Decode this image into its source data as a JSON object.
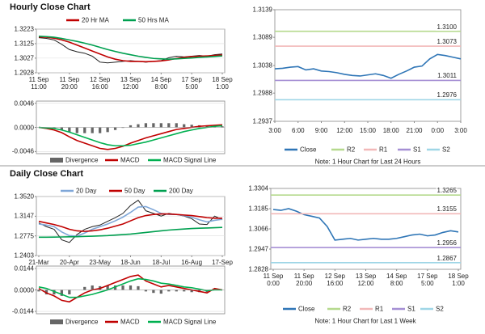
{
  "headers": [
    "Hourly Close Chart",
    "Daily Close Chart"
  ],
  "chart_data": [
    {
      "type": "line",
      "grid": true,
      "categories": [
        "11 Sep\n11:00",
        null,
        null,
        null,
        "11 Sep\n20:00",
        null,
        null,
        null,
        "12 Sep\n16:00",
        null,
        null,
        null,
        "13 Sep\n12:00",
        null,
        null,
        null,
        "14 Sep\n8:00",
        null,
        null,
        null,
        "17 Sep\n5:00",
        null,
        null,
        null,
        "18 Sep\n1:00"
      ],
      "ylim": [
        1.2928,
        1.3223
      ],
      "yticks": [
        1.3223,
        1.3125,
        1.3027,
        1.2928
      ],
      "series": [
        {
          "color": "#222222",
          "values": [
            1.3165,
            1.316,
            1.315,
            1.312,
            1.3085,
            1.307,
            1.306,
            1.304,
            1.3,
            1.2995,
            1.3,
            1.3005,
            1.301,
            1.3005,
            1.3,
            1.3005,
            1.301,
            1.303,
            1.304,
            1.3035,
            1.304,
            1.3045,
            1.304,
            1.305,
            1.3055
          ]
        },
        {
          "name": "20 Hr MA",
          "color": "#c00000",
          "values": [
            1.317,
            1.3168,
            1.3162,
            1.315,
            1.3135,
            1.3115,
            1.3095,
            1.3075,
            1.3055,
            1.3035,
            1.302,
            1.301,
            1.3005,
            1.3005,
            1.3003,
            1.3005,
            1.3008,
            1.3015,
            1.3025,
            1.3032,
            1.3037,
            1.304,
            1.3042,
            1.3045,
            1.3048
          ]
        },
        {
          "name": "50 Hrs MA",
          "color": "#00a050",
          "values": [
            1.3175,
            1.3172,
            1.3168,
            1.316,
            1.315,
            1.314,
            1.3128,
            1.3115,
            1.31,
            1.3085,
            1.3072,
            1.306,
            1.305,
            1.304,
            1.3032,
            1.3025,
            1.3022,
            1.302,
            1.3022,
            1.3025,
            1.3028,
            1.3032,
            1.3035,
            1.3038,
            1.3042
          ]
        }
      ]
    },
    {
      "type": "combo",
      "grid": true,
      "ylim": [
        -0.005,
        0.005
      ],
      "yticks": [
        0.0046,
        {
          "value": 0,
          "label": "0.0000"
        },
        -0.0046
      ],
      "series": [
        {
          "name": "Divergence",
          "type": "bar",
          "color": "#666666",
          "values": [
            0,
            -0.0001,
            -0.0003,
            -0.0005,
            -0.0009,
            -0.0011,
            -0.0011,
            -0.0011,
            -0.0011,
            -0.0009,
            -0.0005,
            -0.0001,
            0.0004,
            0.0006,
            0.0008,
            0.0008,
            0.0008,
            0.0008,
            0.0008,
            0.0006,
            0.0005,
            0.0004,
            0.0003,
            0.0002,
            0.0002
          ]
        },
        {
          "name": "MACD",
          "type": "line",
          "color": "#c00000",
          "values": [
            0,
            -0.0002,
            -0.0005,
            -0.001,
            -0.0018,
            -0.0025,
            -0.003,
            -0.0035,
            -0.004,
            -0.0042,
            -0.004,
            -0.0036,
            -0.003,
            -0.0025,
            -0.002,
            -0.0016,
            -0.0012,
            -0.0008,
            -0.0004,
            -0.0002,
            0,
            0.0002,
            0.0003,
            0.0004,
            0.0005
          ]
        },
        {
          "name": "MACD Signal Line",
          "type": "line",
          "color": "#00b050",
          "values": [
            0,
            -0.0001,
            -0.0002,
            -0.0005,
            -0.0009,
            -0.0014,
            -0.0019,
            -0.0024,
            -0.0029,
            -0.0033,
            -0.0035,
            -0.0035,
            -0.0034,
            -0.0031,
            -0.0028,
            -0.0024,
            -0.002,
            -0.0016,
            -0.0012,
            -0.0008,
            -0.0005,
            -0.0002,
            0,
            0.0002,
            0.0003
          ]
        }
      ]
    },
    {
      "type": "line",
      "grid": false,
      "categories": [
        "3:00",
        null,
        null,
        "6:00",
        null,
        null,
        "9:00",
        null,
        null,
        "12:00",
        null,
        null,
        "15:00",
        null,
        null,
        "18:00",
        null,
        null,
        "21:00",
        null,
        null,
        "0:00",
        null,
        null,
        "3:00"
      ],
      "ylim": [
        1.2937,
        1.3139
      ],
      "yticks": [
        1.3139,
        1.3089,
        1.3038,
        1.2988,
        1.2937
      ],
      "note": "Note: 1 Hour Chart for Last 24 Hours",
      "series": [
        {
          "name": "Close",
          "color": "#2e75b6",
          "values": [
            1.3032,
            1.3033,
            1.3035,
            1.3036,
            1.303,
            1.3032,
            1.3028,
            1.3027,
            1.3025,
            1.3022,
            1.302,
            1.3019,
            1.3021,
            1.3023,
            1.302,
            1.3015,
            1.3022,
            1.3028,
            1.3035,
            1.3037,
            1.305,
            1.3058,
            1.3056,
            1.3053,
            1.305
          ]
        },
        {
          "name": "R2",
          "color": "#b5d98d",
          "level": 1.31,
          "level_label": "1.3100"
        },
        {
          "name": "R1",
          "color": "#f2b8b8",
          "level": 1.3073,
          "level_label": "1.3073"
        },
        {
          "name": "S1",
          "color": "#a58fd4",
          "level": 1.3011,
          "level_label": "1.3011"
        },
        {
          "name": "S2",
          "color": "#9fd6e6",
          "level": 1.2976,
          "level_label": "1.2976"
        }
      ]
    },
    {
      "type": "line",
      "grid": true,
      "categories": [
        "21-Mar",
        null,
        null,
        null,
        "20-Apr",
        null,
        null,
        null,
        "23-May",
        null,
        null,
        null,
        "18-Jun",
        null,
        null,
        null,
        "18-Jul",
        null,
        null,
        null,
        "16-Aug",
        null,
        null,
        null,
        "17-Sep"
      ],
      "ylim": [
        1.2403,
        1.352
      ],
      "yticks": [
        {
          "value": 1.352,
          "label": "1.3520"
        },
        1.3147,
        1.2775,
        1.2403
      ],
      "series": [
        {
          "color": "#222222",
          "values": [
            1.302,
            1.295,
            1.29,
            1.27,
            1.265,
            1.28,
            1.29,
            1.295,
            1.298,
            1.305,
            1.312,
            1.32,
            1.335,
            1.345,
            1.325,
            1.32,
            1.315,
            1.32,
            1.318,
            1.315,
            1.31,
            1.3,
            1.299,
            1.315,
            1.308
          ]
        },
        {
          "name": "20 Day",
          "color": "#7fa7d8",
          "values": [
            1.3,
            1.298,
            1.295,
            1.285,
            1.278,
            1.277,
            1.283,
            1.29,
            1.295,
            1.3,
            1.306,
            1.313,
            1.322,
            1.332,
            1.333,
            1.327,
            1.32,
            1.318,
            1.318,
            1.316,
            1.313,
            1.308,
            1.304,
            1.307,
            1.309
          ]
        },
        {
          "name": "50 Day",
          "color": "#c00000",
          "values": [
            1.305,
            1.302,
            1.299,
            1.295,
            1.29,
            1.287,
            1.286,
            1.287,
            1.289,
            1.292,
            1.296,
            1.3,
            1.306,
            1.312,
            1.316,
            1.318,
            1.319,
            1.319,
            1.318,
            1.317,
            1.316,
            1.314,
            1.312,
            1.311,
            1.311
          ]
        },
        {
          "name": "200 Day",
          "color": "#00a050",
          "values": [
            1.275,
            1.275,
            1.2752,
            1.2755,
            1.2757,
            1.276,
            1.2765,
            1.277,
            1.2775,
            1.278,
            1.279,
            1.28,
            1.281,
            1.2825,
            1.284,
            1.2855,
            1.287,
            1.2885,
            1.2895,
            1.2905,
            1.2915,
            1.292,
            1.2925,
            1.293,
            1.2935
          ]
        }
      ]
    },
    {
      "type": "combo",
      "grid": true,
      "ylim": [
        -0.016,
        0.016
      ],
      "yticks": [
        0.0144,
        {
          "value": 0,
          "label": "0.0000"
        },
        -0.0144
      ],
      "series": [
        {
          "name": "Divergence",
          "type": "bar",
          "color": "#666666",
          "values": [
            -0.001,
            -0.003,
            -0.003,
            -0.004,
            -0.003,
            0,
            0.002,
            0.003,
            0.0025,
            0.003,
            0.003,
            0.003,
            0.003,
            0.0025,
            -0.001,
            -0.002,
            -0.0025,
            -0.001,
            -0.001,
            -0.001,
            -0.0015,
            -0.0015,
            -0.0015,
            0.001,
            0
          ]
        },
        {
          "name": "MACD",
          "type": "line",
          "color": "#c00000",
          "values": [
            0.001,
            -0.002,
            -0.004,
            -0.007,
            -0.008,
            -0.005,
            -0.002,
            0,
            0.001,
            0.003,
            0.005,
            0.007,
            0.009,
            0.01,
            0.006,
            0.004,
            0.002,
            0.003,
            0.002,
            0.001,
            0,
            -0.001,
            -0.002,
            0.001,
            0
          ]
        },
        {
          "name": "MACD Signal Line",
          "type": "line",
          "color": "#00b050",
          "values": [
            0.002,
            0.001,
            -0.001,
            -0.003,
            -0.005,
            -0.005,
            -0.004,
            -0.003,
            -0.0015,
            0,
            0.002,
            0.004,
            0.006,
            0.0075,
            0.007,
            0.006,
            0.0045,
            0.004,
            0.003,
            0.002,
            0.0015,
            0.0005,
            -0.0005,
            0,
            0
          ]
        }
      ]
    },
    {
      "type": "line",
      "grid": false,
      "categories": [
        "11 Sep\n0:00",
        null,
        null,
        null,
        "11 Sep\n20:00",
        null,
        null,
        null,
        "12 Sep\n16:00",
        null,
        null,
        null,
        "13 Sep\n12:00",
        null,
        null,
        null,
        "14 Sep\n8:00",
        null,
        null,
        null,
        "17 Sep\n5:00",
        null,
        null,
        null,
        "18 Sep\n1:00"
      ],
      "ylim": [
        1.2828,
        1.3304
      ],
      "yticks": [
        1.3304,
        1.3185,
        1.3066,
        1.2947,
        1.2828
      ],
      "note": "Note: 1 Hour Chart for Last 1 Week",
      "series": [
        {
          "name": "Close",
          "color": "#2e75b6",
          "values": [
            1.318,
            1.3175,
            1.3185,
            1.317,
            1.315,
            1.314,
            1.313,
            1.308,
            1.3,
            1.3005,
            1.301,
            1.3,
            1.3005,
            1.301,
            1.3005,
            1.3005,
            1.301,
            1.302,
            1.303,
            1.3035,
            1.3025,
            1.303,
            1.3045,
            1.3055,
            1.3048
          ]
        },
        {
          "name": "R2",
          "color": "#b5d98d",
          "level": 1.3265,
          "level_label": "1.3265"
        },
        {
          "name": "R1",
          "color": "#f2b8b8",
          "level": 1.3155,
          "level_label": "1.3155"
        },
        {
          "name": "S1",
          "color": "#a58fd4",
          "level": 1.2956,
          "level_label": "1.2956"
        },
        {
          "name": "S2",
          "color": "#9fd6e6",
          "level": 1.2867,
          "level_label": "1.2867"
        }
      ]
    }
  ]
}
